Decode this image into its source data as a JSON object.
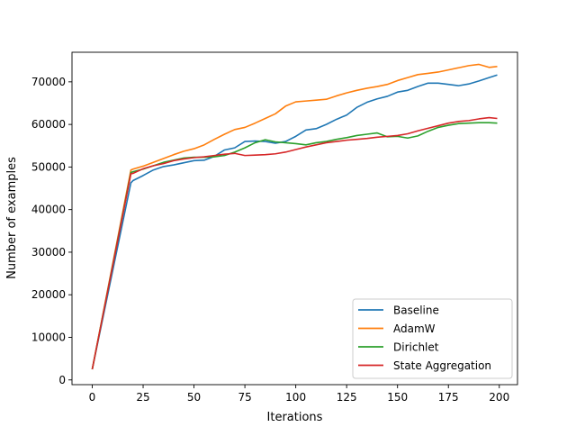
{
  "chart_data": {
    "type": "line",
    "title": "",
    "xlabel": "Iterations",
    "ylabel": "Number of examples",
    "xlim": [
      -9.95,
      208.95
    ],
    "ylim": [
      -1110,
      76950
    ],
    "xticks": [
      0,
      25,
      50,
      75,
      100,
      125,
      150,
      175,
      200
    ],
    "yticks": [
      0,
      10000,
      20000,
      30000,
      40000,
      50000,
      60000,
      70000
    ],
    "xtick_labels": [
      "0",
      "25",
      "50",
      "75",
      "100",
      "125",
      "150",
      "175",
      "200"
    ],
    "ytick_labels": [
      "0",
      "10000",
      "20000",
      "30000",
      "40000",
      "50000",
      "60000",
      "70000"
    ],
    "grid": false,
    "legend_position": "lower-right",
    "series": [
      {
        "name": "Baseline",
        "color": "#1f77b4",
        "x": [
          0,
          19,
          20,
          25,
          30,
          35,
          40,
          45,
          50,
          55,
          60,
          65,
          70,
          75,
          80,
          85,
          90,
          95,
          100,
          105,
          110,
          115,
          120,
          125,
          130,
          135,
          140,
          145,
          150,
          155,
          160,
          165,
          170,
          175,
          180,
          185,
          190,
          195,
          199
        ],
        "y": [
          2500,
          46300,
          46800,
          48000,
          49300,
          50100,
          50500,
          51000,
          51500,
          51600,
          52500,
          54000,
          54500,
          56000,
          56100,
          56000,
          55600,
          56000,
          57200,
          58700,
          59000,
          60000,
          61200,
          62200,
          64000,
          65200,
          66000,
          66600,
          67600,
          68000,
          68900,
          69700,
          69700,
          69400,
          69100,
          69500,
          70200,
          71000,
          71600
        ]
      },
      {
        "name": "AdamW",
        "color": "#ff7f0e",
        "x": [
          0,
          19,
          20,
          25,
          30,
          35,
          40,
          45,
          50,
          55,
          60,
          65,
          70,
          75,
          80,
          85,
          90,
          95,
          100,
          105,
          110,
          115,
          120,
          125,
          130,
          135,
          140,
          145,
          150,
          155,
          160,
          165,
          170,
          175,
          180,
          185,
          190,
          195,
          199
        ],
        "y": [
          2500,
          49300,
          49500,
          50200,
          51100,
          52000,
          52900,
          53700,
          54300,
          55200,
          56500,
          57700,
          58800,
          59300,
          60300,
          61400,
          62500,
          64300,
          65300,
          65500,
          65700,
          65900,
          66700,
          67400,
          68000,
          68500,
          68900,
          69400,
          70300,
          71000,
          71700,
          72000,
          72300,
          72800,
          73300,
          73800,
          74100,
          73400,
          73600
        ]
      },
      {
        "name": "Dirichlet",
        "color": "#2ca02c",
        "x": [
          0,
          19,
          20,
          25,
          30,
          35,
          40,
          45,
          50,
          55,
          60,
          65,
          70,
          75,
          80,
          85,
          90,
          95,
          100,
          105,
          110,
          115,
          120,
          125,
          130,
          135,
          140,
          145,
          150,
          155,
          160,
          165,
          170,
          175,
          180,
          185,
          190,
          195,
          199
        ],
        "y": [
          2500,
          48700,
          48900,
          49500,
          50300,
          51100,
          51600,
          52100,
          52300,
          52300,
          52400,
          52700,
          53500,
          54500,
          55700,
          56400,
          55900,
          55700,
          55500,
          55200,
          55700,
          56000,
          56500,
          56900,
          57400,
          57700,
          58000,
          57100,
          57200,
          56800,
          57300,
          58400,
          59300,
          59800,
          60200,
          60300,
          60400,
          60400,
          60300
        ]
      },
      {
        "name": "State Aggregation",
        "color": "#d62728",
        "x": [
          0,
          19,
          20,
          25,
          30,
          35,
          40,
          45,
          50,
          55,
          60,
          65,
          70,
          75,
          80,
          85,
          90,
          95,
          100,
          105,
          110,
          115,
          120,
          125,
          130,
          135,
          140,
          145,
          150,
          155,
          160,
          165,
          170,
          175,
          180,
          185,
          190,
          195,
          199
        ],
        "y": [
          2500,
          48400,
          48500,
          49600,
          50300,
          50800,
          51500,
          51900,
          52200,
          52400,
          52700,
          53000,
          53200,
          52700,
          52800,
          52900,
          53100,
          53500,
          54100,
          54700,
          55200,
          55700,
          56000,
          56300,
          56500,
          56700,
          57000,
          57200,
          57400,
          57800,
          58500,
          59100,
          59700,
          60300,
          60700,
          60900,
          61300,
          61600,
          61400
        ]
      }
    ]
  }
}
